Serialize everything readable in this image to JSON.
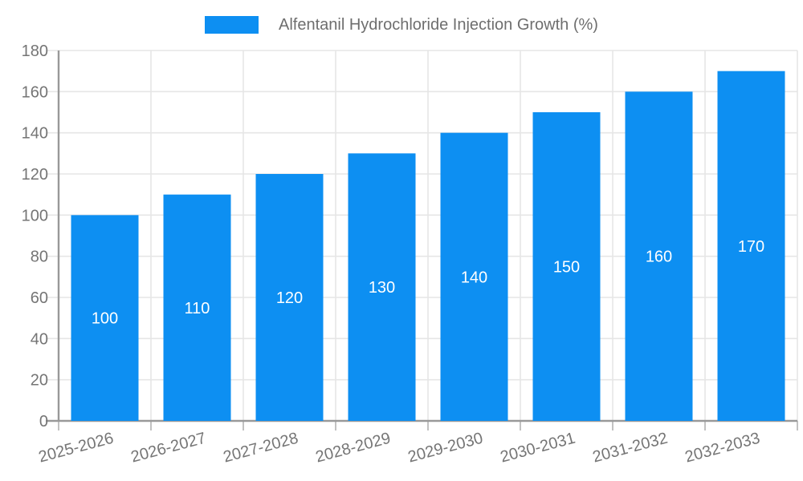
{
  "legend": {
    "label": "Alfentanil Hydrochloride Injection Growth (%)"
  },
  "chart_data": {
    "type": "bar",
    "title": "",
    "xlabel": "",
    "ylabel": "",
    "categories": [
      "2025-2026",
      "2026-2027",
      "2027-2028",
      "2028-2029",
      "2029-2030",
      "2030-2031",
      "2031-2032",
      "2032-2033"
    ],
    "series": [
      {
        "name": "Alfentanil Hydrochloride Injection Growth (%)",
        "values": [
          100,
          110,
          120,
          130,
          140,
          150,
          160,
          170
        ]
      }
    ],
    "value_labels": [
      "100",
      "110",
      "120",
      "130",
      "140",
      "150",
      "160",
      "170"
    ],
    "value_label_position": "inside-center",
    "ylim": [
      0,
      180
    ],
    "yticks": [
      0,
      20,
      40,
      60,
      80,
      100,
      120,
      140,
      160,
      180
    ],
    "grid": true,
    "legend_position": "top-center",
    "x_label_rotation_deg": -15,
    "colors": {
      "bar": "#0d8ff2",
      "value_label": "#ffffff",
      "grid_line": "#e6e6e6",
      "axis_line": "#999999",
      "tick_mark": "#c2c2c2",
      "tick_label": "#757575",
      "legend_text": "#6e6e6e"
    }
  }
}
